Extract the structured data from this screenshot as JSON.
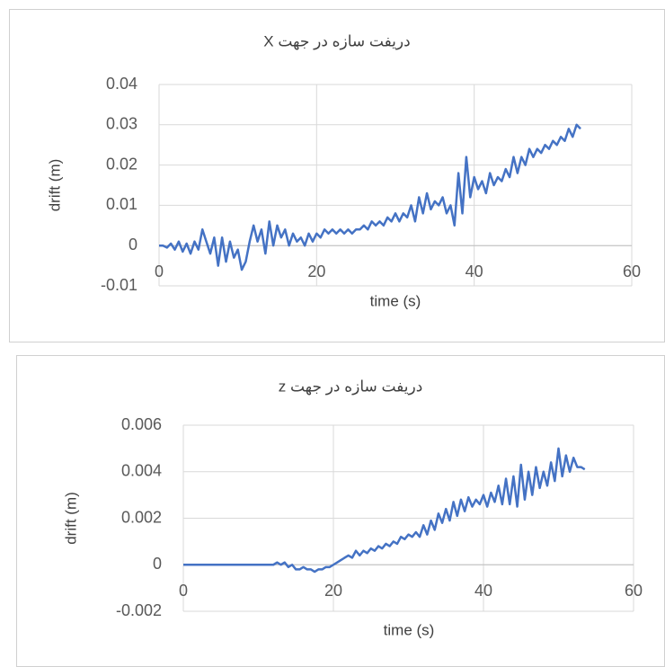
{
  "chart_data": [
    {
      "type": "line",
      "title": "دریفت سازه در جهت X",
      "xlabel": "time (s)",
      "ylabel": "drift (m)",
      "xlim": [
        0,
        60
      ],
      "xticks": [
        0,
        20,
        40,
        60
      ],
      "ylim": [
        -0.01,
        0.04
      ],
      "yticks": [
        -0.01,
        0,
        0.01,
        0.02,
        0.03,
        0.04
      ],
      "grid": true,
      "x": [
        0,
        0.5,
        1,
        1.5,
        2,
        2.5,
        3,
        3.5,
        4,
        4.5,
        5,
        5.5,
        6,
        6.5,
        7,
        7.5,
        8,
        8.5,
        9,
        9.5,
        10,
        10.5,
        11,
        11.5,
        12,
        12.5,
        13,
        13.5,
        14,
        14.5,
        15,
        15.5,
        16,
        16.5,
        17,
        17.5,
        18,
        18.5,
        19,
        19.5,
        20,
        20.5,
        21,
        21.5,
        22,
        22.5,
        23,
        23.5,
        24,
        24.5,
        25,
        25.5,
        26,
        26.5,
        27,
        27.5,
        28,
        28.5,
        29,
        29.5,
        30,
        30.5,
        31,
        31.5,
        32,
        32.5,
        33,
        33.5,
        34,
        34.5,
        35,
        35.5,
        36,
        36.5,
        37,
        37.5,
        38,
        38.5,
        39,
        39.5,
        40,
        40.5,
        41,
        41.5,
        42,
        42.5,
        43,
        43.5,
        44,
        44.5,
        45,
        45.5,
        46,
        46.5,
        47,
        47.5,
        48,
        48.5,
        49,
        49.5,
        50,
        50.5,
        51,
        51.5,
        52,
        52.5,
        53,
        53.5
      ],
      "series": [
        {
          "color": "#4472c4",
          "values": [
            0,
            0,
            -0.0005,
            0.0005,
            -0.001,
            0.001,
            -0.0015,
            0.0005,
            -0.002,
            0.001,
            -0.001,
            0.004,
            0.001,
            -0.002,
            0.002,
            -0.005,
            0.002,
            -0.004,
            0.001,
            -0.003,
            -0.001,
            -0.006,
            -0.004,
            0.001,
            0.005,
            0.001,
            0.004,
            -0.002,
            0.006,
            0,
            0.005,
            0.002,
            0.004,
            0,
            0.003,
            0.001,
            0.002,
            0,
            0.003,
            0.001,
            0.003,
            0.002,
            0.004,
            0.003,
            0.004,
            0.003,
            0.004,
            0.003,
            0.004,
            0.003,
            0.004,
            0.004,
            0.005,
            0.004,
            0.006,
            0.005,
            0.006,
            0.005,
            0.007,
            0.006,
            0.008,
            0.006,
            0.008,
            0.007,
            0.01,
            0.006,
            0.012,
            0.008,
            0.013,
            0.009,
            0.011,
            0.01,
            0.012,
            0.008,
            0.01,
            0.005,
            0.018,
            0.008,
            0.022,
            0.012,
            0.017,
            0.014,
            0.016,
            0.013,
            0.018,
            0.015,
            0.017,
            0.016,
            0.019,
            0.017,
            0.022,
            0.018,
            0.022,
            0.02,
            0.024,
            0.022,
            0.024,
            0.023,
            0.025,
            0.024,
            0.026,
            0.025,
            0.027,
            0.026,
            0.029,
            0.027,
            0.03,
            0.029
          ]
        }
      ]
    },
    {
      "type": "line",
      "title": "دریفت سازه در جهت z",
      "xlabel": "time (s)",
      "ylabel": "drift (m)",
      "xlim": [
        0,
        60
      ],
      "xticks": [
        0,
        20,
        40,
        60
      ],
      "ylim": [
        -0.002,
        0.006
      ],
      "yticks": [
        -0.002,
        0,
        0.002,
        0.004,
        0.006
      ],
      "grid": true,
      "x": [
        0,
        0.5,
        1,
        1.5,
        2,
        2.5,
        3,
        3.5,
        4,
        4.5,
        5,
        5.5,
        6,
        6.5,
        7,
        7.5,
        8,
        8.5,
        9,
        9.5,
        10,
        10.5,
        11,
        11.5,
        12,
        12.5,
        13,
        13.5,
        14,
        14.5,
        15,
        15.5,
        16,
        16.5,
        17,
        17.5,
        18,
        18.5,
        19,
        19.5,
        20,
        20.5,
        21,
        21.5,
        22,
        22.5,
        23,
        23.5,
        24,
        24.5,
        25,
        25.5,
        26,
        26.5,
        27,
        27.5,
        28,
        28.5,
        29,
        29.5,
        30,
        30.5,
        31,
        31.5,
        32,
        32.5,
        33,
        33.5,
        34,
        34.5,
        35,
        35.5,
        36,
        36.5,
        37,
        37.5,
        38,
        38.5,
        39,
        39.5,
        40,
        40.5,
        41,
        41.5,
        42,
        42.5,
        43,
        43.5,
        44,
        44.5,
        45,
        45.5,
        46,
        46.5,
        47,
        47.5,
        48,
        48.5,
        49,
        49.5,
        50,
        50.5,
        51,
        51.5,
        52,
        52.5,
        53,
        53.5
      ],
      "series": [
        {
          "color": "#4472c4",
          "values": [
            0,
            0,
            0,
            0,
            0,
            0,
            0,
            0,
            0,
            0,
            0,
            0,
            0,
            0,
            0,
            0,
            0,
            0,
            0,
            0,
            0,
            0,
            0,
            0,
            0,
            0.0001,
            0,
            0.0001,
            -0.0001,
            0,
            -0.0002,
            -0.0002,
            -0.0001,
            -0.0002,
            -0.0002,
            -0.0003,
            -0.0002,
            -0.0002,
            -0.0001,
            -0.0001,
            0,
            0.0001,
            0.0002,
            0.0003,
            0.0004,
            0.0003,
            0.0006,
            0.0004,
            0.0006,
            0.0005,
            0.0007,
            0.0006,
            0.0008,
            0.0007,
            0.0009,
            0.0008,
            0.001,
            0.0009,
            0.0012,
            0.0011,
            0.0013,
            0.0012,
            0.0014,
            0.0012,
            0.0017,
            0.0013,
            0.0019,
            0.0015,
            0.0022,
            0.0018,
            0.0024,
            0.0019,
            0.0027,
            0.0021,
            0.0028,
            0.0023,
            0.0029,
            0.0025,
            0.0028,
            0.0026,
            0.003,
            0.0025,
            0.0031,
            0.0027,
            0.0034,
            0.0026,
            0.0037,
            0.0026,
            0.0038,
            0.0025,
            0.0043,
            0.0028,
            0.004,
            0.003,
            0.0042,
            0.0033,
            0.004,
            0.0034,
            0.0044,
            0.0036,
            0.005,
            0.0038,
            0.0047,
            0.004,
            0.0046,
            0.0042,
            0.0042,
            0.0041
          ]
        }
      ]
    }
  ]
}
